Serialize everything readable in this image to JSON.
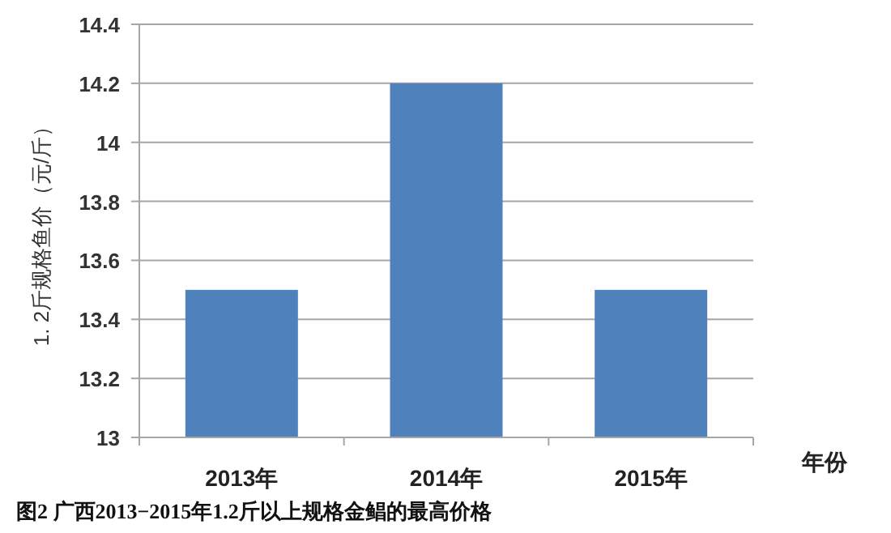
{
  "chart_data": {
    "type": "bar",
    "title": "图2 广西2013−2015年1.2斤以上规格金鲳的最高价格",
    "xlabel": "年份",
    "ylabel": "1. 2斤规格鱼价（元/斤）",
    "categories": [
      "2013年",
      "2014年",
      "2015年"
    ],
    "values": [
      13.5,
      14.2,
      13.5
    ],
    "color": "#4f81bd",
    "ylim": [
      13,
      14.4
    ],
    "yticks": [
      13,
      13.2,
      13.4,
      13.6,
      13.8,
      14,
      14.2,
      14.4
    ],
    "grid": "y"
  }
}
